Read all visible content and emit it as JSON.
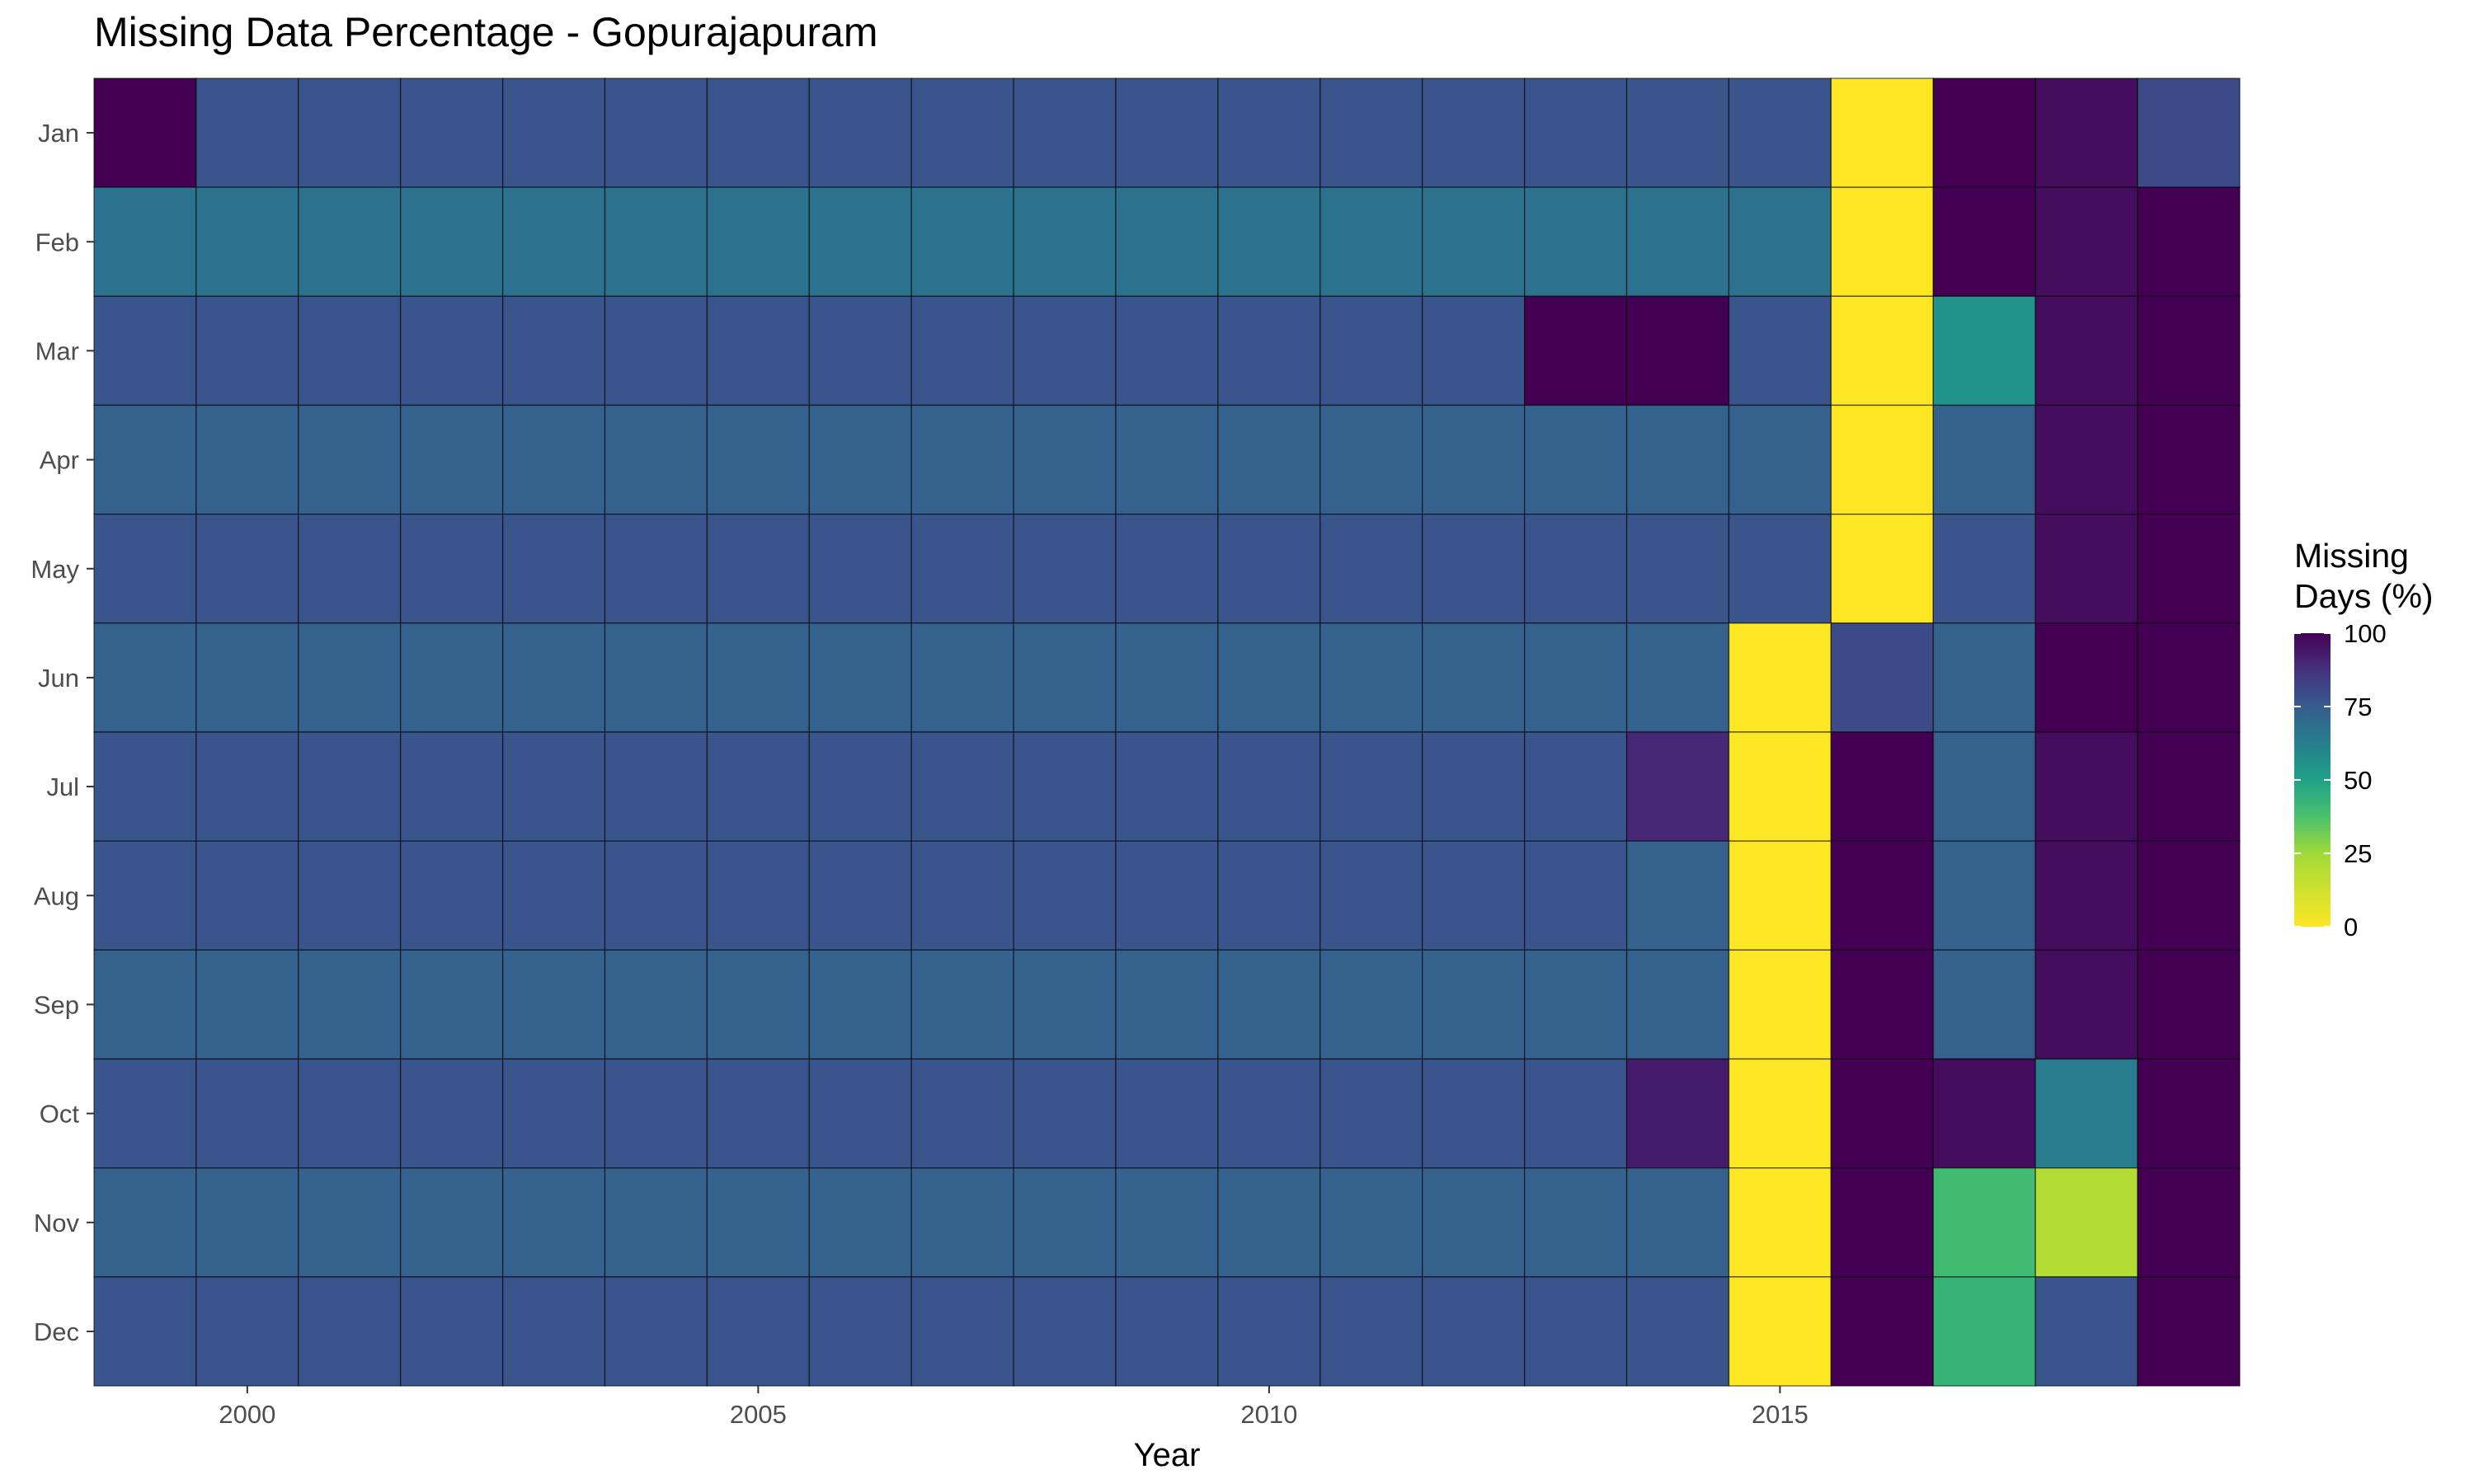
{
  "chart_data": {
    "type": "heatmap",
    "title": "Missing Data Percentage - Gopurajapuram",
    "xlabel": "Year",
    "ylabel": "",
    "x": [
      1999,
      2000,
      2001,
      2002,
      2003,
      2004,
      2005,
      2006,
      2007,
      2008,
      2009,
      2010,
      2011,
      2012,
      2013,
      2014,
      2015,
      2016,
      2017,
      2018,
      2019
    ],
    "x_ticks": [
      2000,
      2005,
      2010,
      2015
    ],
    "y": [
      "Jan",
      "Feb",
      "Mar",
      "Apr",
      "May",
      "Jun",
      "Jul",
      "Aug",
      "Sep",
      "Oct",
      "Nov",
      "Dec"
    ],
    "values": [
      [
        100,
        77,
        77,
        77,
        77,
        77,
        77,
        77,
        77,
        77,
        77,
        77,
        77,
        77,
        77,
        77,
        77,
        0,
        100,
        97,
        80
      ],
      [
        67,
        67,
        67,
        67,
        67,
        67,
        67,
        67,
        67,
        67,
        67,
        67,
        67,
        67,
        67,
        67,
        67,
        0,
        100,
        97,
        100
      ],
      [
        77,
        77,
        77,
        77,
        77,
        77,
        77,
        77,
        77,
        77,
        77,
        77,
        77,
        77,
        100,
        100,
        77,
        0,
        55,
        97,
        100
      ],
      [
        73,
        73,
        73,
        73,
        73,
        73,
        73,
        73,
        73,
        73,
        73,
        73,
        73,
        73,
        73,
        73,
        73,
        0,
        73,
        97,
        100
      ],
      [
        77,
        77,
        77,
        77,
        77,
        77,
        77,
        77,
        77,
        77,
        77,
        77,
        77,
        77,
        77,
        77,
        77,
        0,
        77,
        97,
        100
      ],
      [
        73,
        73,
        73,
        73,
        73,
        73,
        73,
        73,
        73,
        73,
        73,
        73,
        73,
        73,
        73,
        73,
        0,
        80,
        73,
        100,
        100
      ],
      [
        77,
        77,
        77,
        77,
        77,
        77,
        77,
        77,
        77,
        77,
        77,
        77,
        77,
        77,
        77,
        90,
        0,
        100,
        73,
        97,
        100
      ],
      [
        77,
        77,
        77,
        77,
        77,
        77,
        77,
        77,
        77,
        77,
        77,
        77,
        77,
        77,
        77,
        73,
        0,
        100,
        73,
        97,
        100
      ],
      [
        73,
        73,
        73,
        73,
        73,
        73,
        73,
        73,
        73,
        73,
        73,
        73,
        73,
        73,
        73,
        73,
        0,
        100,
        73,
        97,
        100
      ],
      [
        77,
        77,
        77,
        77,
        77,
        77,
        77,
        77,
        77,
        77,
        77,
        77,
        77,
        77,
        77,
        93,
        0,
        100,
        97,
        63,
        100
      ],
      [
        73,
        73,
        73,
        73,
        73,
        73,
        73,
        73,
        73,
        73,
        73,
        73,
        73,
        73,
        73,
        73,
        0,
        100,
        40,
        20,
        100
      ],
      [
        77,
        77,
        77,
        77,
        77,
        77,
        77,
        77,
        77,
        77,
        77,
        77,
        77,
        77,
        77,
        77,
        0,
        100,
        43,
        77,
        100
      ]
    ],
    "colorscale": "viridis-reversed",
    "color_range": [
      0,
      100
    ],
    "legend": {
      "title_line1": "Missing",
      "title_line2": "Days (%)",
      "ticks": [
        "100",
        "75",
        "50",
        "25",
        "0"
      ],
      "placement": "right"
    },
    "background": "#EBEBEB",
    "grid": true
  }
}
